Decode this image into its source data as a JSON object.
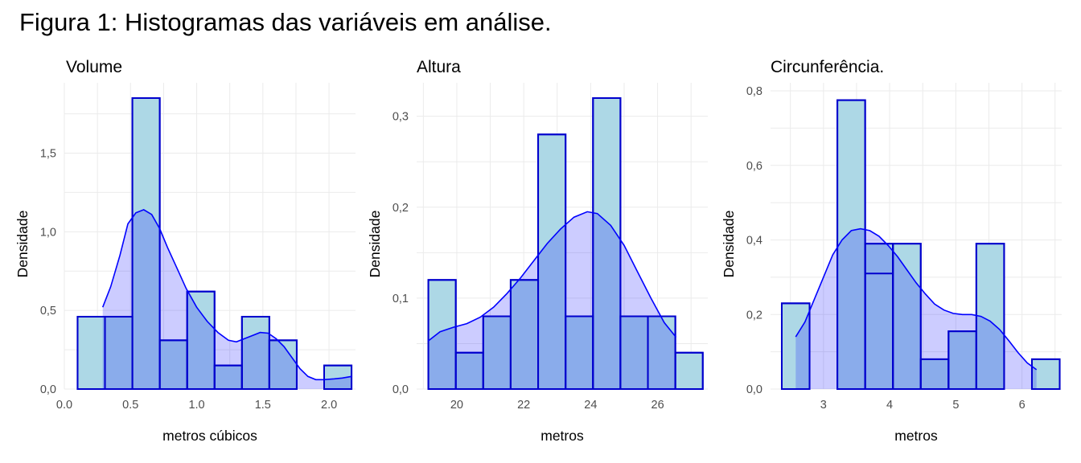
{
  "figure_title": "Figura 1: Histogramas das variáveis em análise.",
  "colors": {
    "bar_fill": "#add8e6",
    "bar_stroke": "#0000cd",
    "density_fill": "#0000ff",
    "density_line": "#0000ff",
    "grid": "#ebebeb"
  },
  "chart_data": [
    {
      "type": "bar",
      "title": "Volume",
      "xlabel": "metros cúbicos",
      "ylabel": "Densidade",
      "xlim": [
        0.0,
        2.2
      ],
      "ylim": [
        0,
        1.85
      ],
      "xticks": [
        0.0,
        0.5,
        1.0,
        1.5,
        2.0
      ],
      "xtick_labels": [
        "0.0",
        "0.5",
        "1.0",
        "1.5",
        "2.0"
      ],
      "yticks": [
        0.0,
        0.5,
        1.0,
        1.5
      ],
      "ytick_labels": [
        "0,0",
        "0,5",
        "1,0",
        "1,5"
      ],
      "grid": true,
      "bin_width": 0.207,
      "bins_x_start": [
        0.1,
        0.307,
        0.514,
        0.721,
        0.928,
        1.135,
        1.342,
        1.549,
        1.756,
        1.963
      ],
      "values": [
        0.46,
        0.46,
        1.85,
        0.31,
        0.62,
        0.15,
        0.46,
        0.31,
        0.0,
        0.15
      ],
      "density": {
        "x": [
          0.29,
          0.35,
          0.42,
          0.48,
          0.54,
          0.6,
          0.66,
          0.72,
          0.78,
          0.85,
          0.92,
          1.0,
          1.08,
          1.16,
          1.24,
          1.3,
          1.36,
          1.42,
          1.48,
          1.54,
          1.6,
          1.66,
          1.72,
          1.78,
          1.84,
          1.9,
          1.96,
          2.04,
          2.1,
          2.17
        ],
        "y": [
          0.52,
          0.65,
          0.85,
          1.05,
          1.12,
          1.14,
          1.11,
          1.02,
          0.9,
          0.77,
          0.64,
          0.52,
          0.43,
          0.36,
          0.31,
          0.3,
          0.32,
          0.34,
          0.36,
          0.355,
          0.32,
          0.27,
          0.2,
          0.13,
          0.08,
          0.06,
          0.06,
          0.065,
          0.07,
          0.08
        ]
      }
    },
    {
      "type": "bar",
      "title": "Altura",
      "xlabel": "metros",
      "ylabel": "Densidade",
      "xlim": [
        18.8,
        27.5
      ],
      "ylim": [
        0,
        0.32
      ],
      "xticks": [
        20,
        22,
        24,
        26
      ],
      "xtick_labels": [
        "20",
        "22",
        "24",
        "26"
      ],
      "yticks": [
        0.0,
        0.1,
        0.2,
        0.3
      ],
      "ytick_labels": [
        "0,0",
        "0,1",
        "0,2",
        "0,3"
      ],
      "grid": true,
      "bin_width": 0.82,
      "bins_x_start": [
        19.15,
        19.97,
        20.79,
        21.61,
        22.43,
        23.25,
        24.07,
        24.89,
        25.71,
        26.53
      ],
      "values": [
        0.12,
        0.04,
        0.08,
        0.12,
        0.28,
        0.08,
        0.32,
        0.08,
        0.08,
        0.04
      ],
      "density": {
        "x": [
          19.15,
          19.5,
          19.9,
          20.3,
          20.7,
          21.1,
          21.5,
          21.9,
          22.3,
          22.7,
          23.1,
          23.5,
          23.9,
          24.2,
          24.6,
          25.0,
          25.4,
          25.8,
          26.2,
          26.55
        ],
        "y": [
          0.053,
          0.063,
          0.068,
          0.072,
          0.079,
          0.09,
          0.105,
          0.122,
          0.141,
          0.16,
          0.176,
          0.189,
          0.195,
          0.193,
          0.18,
          0.158,
          0.129,
          0.1,
          0.073,
          0.057
        ]
      }
    },
    {
      "type": "bar",
      "title": "Circunferência.",
      "xlabel": "metros",
      "ylabel": "Densidade",
      "xlim": [
        2.2,
        6.6
      ],
      "ylim": [
        0,
        0.8
      ],
      "xticks": [
        3,
        4,
        5,
        6
      ],
      "xtick_labels": [
        "3",
        "4",
        "5",
        "6"
      ],
      "yticks": [
        0.0,
        0.2,
        0.4,
        0.6,
        0.8
      ],
      "ytick_labels": [
        "0,0",
        "0,2",
        "0,4",
        "0,6",
        "0,8"
      ],
      "grid": true,
      "bin_width": 0.42,
      "bins_x_start": [
        2.37,
        2.79,
        3.21,
        3.63,
        4.05,
        4.47,
        4.89,
        5.31,
        5.73,
        6.15
      ],
      "values": [
        0.23,
        0.0,
        0.775,
        0.39,
        0.39,
        0.08,
        0.155,
        0.39,
        0.0,
        0.08
      ],
      "overlap_values": [
        0.0,
        0.0,
        0.0,
        0.31,
        0.0,
        0.0,
        0.0,
        0.0,
        0.0,
        0.0
      ],
      "density": {
        "x": [
          2.58,
          2.72,
          2.86,
          3.0,
          3.14,
          3.28,
          3.42,
          3.56,
          3.7,
          3.84,
          3.98,
          4.12,
          4.26,
          4.4,
          4.54,
          4.68,
          4.82,
          4.96,
          5.1,
          5.24,
          5.38,
          5.52,
          5.66,
          5.8,
          5.94,
          6.08,
          6.22
        ],
        "y": [
          0.14,
          0.18,
          0.24,
          0.3,
          0.36,
          0.4,
          0.425,
          0.43,
          0.425,
          0.41,
          0.385,
          0.355,
          0.32,
          0.285,
          0.255,
          0.228,
          0.212,
          0.203,
          0.2,
          0.2,
          0.195,
          0.182,
          0.16,
          0.13,
          0.098,
          0.07,
          0.052
        ]
      }
    }
  ]
}
